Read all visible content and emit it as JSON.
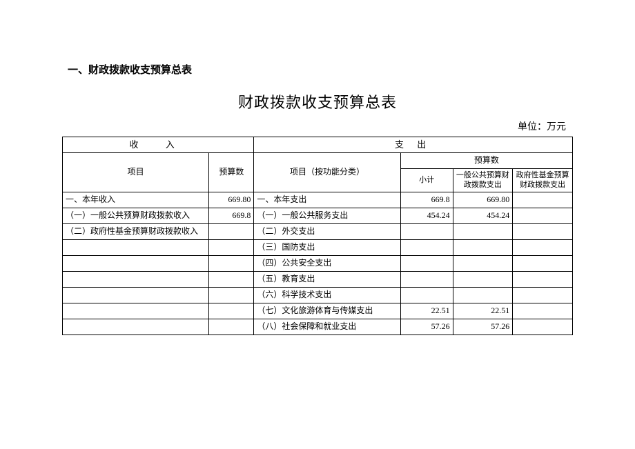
{
  "section_heading": "一、财政拨款收支预算总表",
  "title": "财政拨款收支预算总表",
  "unit_label": "单位：万元",
  "headers": {
    "income_top": "收    入",
    "expense_top": "支    出",
    "item": "项目",
    "budget_num": "预算数",
    "expense_item": "项目（按功能分类）",
    "subtotal": "小计",
    "gen_public": "一般公共预算财政拨款支出",
    "gov_fund": "政府性基金预算财政拨款支出"
  },
  "rows": [
    {
      "income_item": "一、本年收入",
      "income_val": "669.80",
      "expense_item": "一、本年支出",
      "subtotal": "669.8",
      "gen": "669.80",
      "fund": "",
      "income_indent": "",
      "expense_indent": ""
    },
    {
      "income_item": "（一）一般公共预算财政拨款收入",
      "income_val": "669.8",
      "expense_item": "（一）一般公共服务支出",
      "subtotal": "454.24",
      "gen": "454.24",
      "fund": "",
      "income_indent": "indent1",
      "expense_indent": "indent2"
    },
    {
      "income_item": "（二）政府性基金预算财政拨款收入",
      "income_val": "",
      "expense_item": "（二）外交支出",
      "subtotal": "",
      "gen": "",
      "fund": "",
      "income_indent": "indent1",
      "expense_indent": "indent2"
    },
    {
      "income_item": "",
      "income_val": "",
      "expense_item": "（三）国防支出",
      "subtotal": "",
      "gen": "",
      "fund": "",
      "income_indent": "",
      "expense_indent": "indent2"
    },
    {
      "income_item": "",
      "income_val": "",
      "expense_item": "（四）公共安全支出",
      "subtotal": "",
      "gen": "",
      "fund": "",
      "income_indent": "",
      "expense_indent": "indent2"
    },
    {
      "income_item": "",
      "income_val": "",
      "expense_item": "（五）教育支出",
      "subtotal": "",
      "gen": "",
      "fund": "",
      "income_indent": "",
      "expense_indent": "indent2"
    },
    {
      "income_item": "",
      "income_val": "",
      "expense_item": "（六）科学技术支出",
      "subtotal": "",
      "gen": "",
      "fund": "",
      "income_indent": "",
      "expense_indent": "indent2"
    },
    {
      "income_item": "",
      "income_val": "",
      "expense_item": "（七）文化旅游体育与传媒支出",
      "subtotal": "22.51",
      "gen": "22.51",
      "fund": "",
      "income_indent": "",
      "expense_indent": "indent2"
    },
    {
      "income_item": "",
      "income_val": "",
      "expense_item": "（八）社会保障和就业支出",
      "subtotal": "57.26",
      "gen": "57.26",
      "fund": "",
      "income_indent": "",
      "expense_indent": "indent2"
    }
  ]
}
